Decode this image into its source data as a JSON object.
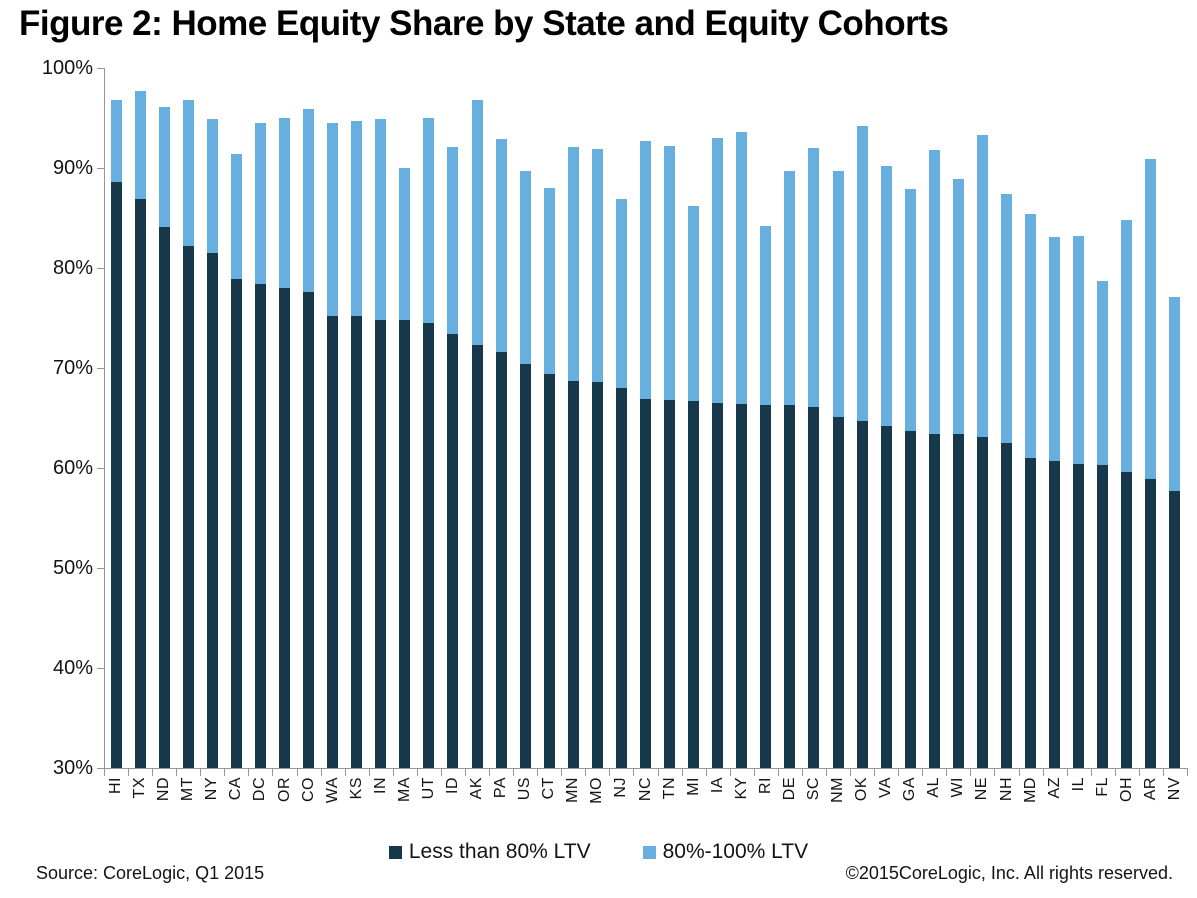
{
  "title": "Figure 2: Home Equity Share by State and Equity Cohorts",
  "legend": [
    {
      "label": "Less than 80% LTV",
      "color": "#16384A"
    },
    {
      "label": "80%-100% LTV",
      "color": "#66AFDE"
    }
  ],
  "footer": {
    "source": "Source: CoreLogic, Q1 2015",
    "copyright": "©2015CoreLogic, Inc. All rights reserved."
  },
  "colors": {
    "dark_bar": "#16384A",
    "light_bar": "#66AFDE",
    "axis": "#969696",
    "text": "#131318",
    "title": "#000000"
  },
  "y_axis": {
    "values": [
      100,
      90,
      80,
      70,
      60,
      50,
      40,
      30
    ],
    "tick_labels": [
      "100%",
      "90%",
      "80%",
      "70%",
      "60%",
      "50%",
      "40%",
      "30%"
    ]
  },
  "chart_data": {
    "type": "bar",
    "stacked": true,
    "title": "Figure 2: Home Equity Share by State and Equity Cohorts",
    "xlabel": "",
    "ylabel": "",
    "ylim": [
      30,
      100
    ],
    "grid": false,
    "legend_position": "bottom",
    "categories": [
      "HI",
      "TX",
      "ND",
      "MT",
      "NY",
      "CA",
      "DC",
      "OR",
      "CO",
      "WA",
      "KS",
      "IN",
      "MA",
      "UT",
      "ID",
      "AK",
      "PA",
      "US",
      "CT",
      "MN",
      "MO",
      "NJ",
      "NC",
      "TN",
      "MI",
      "IA",
      "KY",
      "RI",
      "DE",
      "SC",
      "NM",
      "OK",
      "VA",
      "GA",
      "AL",
      "WI",
      "NE",
      "NH",
      "MD",
      "AZ",
      "IL",
      "FL",
      "OH",
      "AR",
      "NV"
    ],
    "series": [
      {
        "name": "Less than 80% LTV",
        "color": "#16384A",
        "values": [
          88.6,
          86.9,
          84.1,
          82.2,
          81.5,
          78.9,
          78.4,
          78.0,
          77.6,
          75.2,
          75.2,
          74.8,
          74.8,
          74.5,
          73.4,
          72.3,
          71.6,
          70.4,
          69.4,
          68.7,
          68.6,
          68.0,
          66.9,
          66.8,
          66.7,
          66.5,
          66.4,
          66.3,
          66.3,
          66.1,
          65.1,
          64.7,
          64.2,
          63.7,
          63.4,
          63.4,
          63.1,
          62.5,
          61.0,
          60.7,
          60.4,
          60.3,
          59.6,
          58.9,
          57.7
        ]
      },
      {
        "name": "80%-100% LTV",
        "color": "#66AFDE",
        "values": [
          8.2,
          10.8,
          12.0,
          14.6,
          13.4,
          12.5,
          16.1,
          17.0,
          18.3,
          19.3,
          19.5,
          20.1,
          15.2,
          20.5,
          18.7,
          24.5,
          21.3,
          19.3,
          18.6,
          23.4,
          23.3,
          18.9,
          25.8,
          25.4,
          19.5,
          26.5,
          27.2,
          17.9,
          23.4,
          25.9,
          24.6,
          29.5,
          26.0,
          24.2,
          28.4,
          25.5,
          30.2,
          24.9,
          24.4,
          22.4,
          22.8,
          18.4,
          25.2,
          32.0,
          19.4
        ]
      }
    ],
    "stack_totals": [
      96.8,
      97.7,
      96.1,
      96.8,
      94.9,
      91.4,
      94.5,
      95.0,
      95.9,
      94.5,
      94.7,
      94.9,
      90.0,
      95.0,
      92.1,
      96.8,
      92.9,
      89.7,
      88.0,
      92.1,
      91.9,
      86.9,
      92.7,
      92.2,
      86.2,
      93.0,
      93.6,
      84.2,
      89.7,
      92.0,
      89.7,
      94.2,
      90.2,
      87.9,
      91.8,
      88.9,
      93.3,
      87.4,
      85.4,
      83.1,
      83.2,
      78.7,
      84.8,
      90.9,
      77.1
    ]
  }
}
